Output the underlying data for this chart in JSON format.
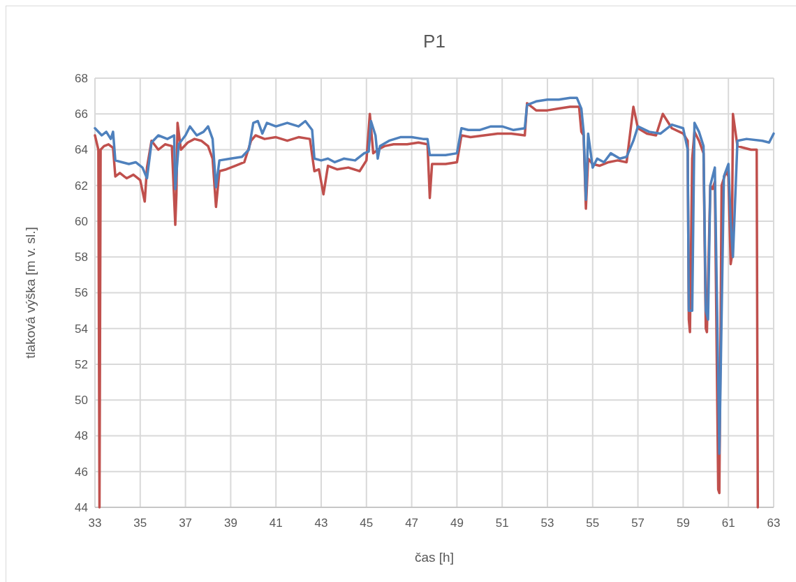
{
  "chart_data": {
    "type": "line",
    "title": "P1",
    "xlabel": "čas [h]",
    "ylabel": "tlaková výška [m v. sl.]",
    "xlim": [
      33,
      63
    ],
    "ylim": [
      44,
      68
    ],
    "xticks": [
      33,
      35,
      37,
      39,
      41,
      43,
      45,
      47,
      49,
      51,
      53,
      55,
      57,
      59,
      61,
      63
    ],
    "yticks": [
      44,
      46,
      48,
      50,
      52,
      54,
      56,
      58,
      60,
      62,
      64,
      66,
      68
    ],
    "grid": true,
    "marker": "none",
    "line_style": "solid",
    "series": [
      {
        "color": "#c0504d",
        "x": [
          33.0,
          33.15,
          33.2,
          33.25,
          33.4,
          33.6,
          33.8,
          33.9,
          34.1,
          34.4,
          34.7,
          35.0,
          35.2,
          35.3,
          35.5,
          35.8,
          36.1,
          36.4,
          36.55,
          36.6,
          36.65,
          36.8,
          37.1,
          37.4,
          37.7,
          38.0,
          38.2,
          38.35,
          38.5,
          38.8,
          39.2,
          39.6,
          39.9,
          40.1,
          40.5,
          41.0,
          41.5,
          42.0,
          42.5,
          42.7,
          42.9,
          43.1,
          43.3,
          43.7,
          44.2,
          44.7,
          45.0,
          45.15,
          45.3,
          45.5,
          45.8,
          46.2,
          46.8,
          47.3,
          47.7,
          47.8,
          47.9,
          48.5,
          49.0,
          49.2,
          49.6,
          50.2,
          50.8,
          51.4,
          52.0,
          52.1,
          52.5,
          53.0,
          53.5,
          54.0,
          54.4,
          54.5,
          54.6,
          54.7,
          54.8,
          55.0,
          55.3,
          55.7,
          56.1,
          56.5,
          56.8,
          57.0,
          57.4,
          57.8,
          58.1,
          58.5,
          59.0,
          59.2,
          59.25,
          59.3,
          59.4,
          59.5,
          59.7,
          59.9,
          60.0,
          60.05,
          60.2,
          60.3,
          60.4,
          60.55,
          60.6,
          60.7,
          60.9,
          61.0,
          61.1,
          61.15,
          61.2,
          61.4,
          61.7,
          62.0,
          62.25,
          62.3
        ],
        "values": [
          64.8,
          64.0,
          44.0,
          64.0,
          64.2,
          64.3,
          64.1,
          62.5,
          62.7,
          62.4,
          62.6,
          62.3,
          61.1,
          63.0,
          64.5,
          64.0,
          64.3,
          64.2,
          59.8,
          61.5,
          65.5,
          64.0,
          64.4,
          64.6,
          64.5,
          64.2,
          63.5,
          60.8,
          62.8,
          62.9,
          63.1,
          63.3,
          64.5,
          64.8,
          64.6,
          64.7,
          64.5,
          64.7,
          64.6,
          62.8,
          62.9,
          61.5,
          63.1,
          62.9,
          63.0,
          62.8,
          63.4,
          66.0,
          63.8,
          64.0,
          64.2,
          64.3,
          64.3,
          64.4,
          64.3,
          61.3,
          63.2,
          63.2,
          63.3,
          64.8,
          64.7,
          64.8,
          64.9,
          64.9,
          64.8,
          66.6,
          66.2,
          66.2,
          66.3,
          66.4,
          66.4,
          65.0,
          64.8,
          60.7,
          63.5,
          63.2,
          63.1,
          63.3,
          63.4,
          63.3,
          66.4,
          65.2,
          64.9,
          64.8,
          66.0,
          65.2,
          64.9,
          64.5,
          54.5,
          53.8,
          63.5,
          65.0,
          64.5,
          63.8,
          54.0,
          53.8,
          62.0,
          61.8,
          62.2,
          45.0,
          44.8,
          62.0,
          62.8,
          62.5,
          57.6,
          58.0,
          66.0,
          64.2,
          64.1,
          64.0,
          64.0,
          44.0
        ]
      },
      {
        "color": "#4f81bd",
        "x": [
          33.0,
          33.3,
          33.5,
          33.7,
          33.8,
          33.9,
          34.2,
          34.5,
          34.8,
          35.1,
          35.3,
          35.5,
          35.8,
          36.2,
          36.5,
          36.55,
          36.7,
          37.0,
          37.2,
          37.5,
          37.8,
          38.0,
          38.2,
          38.35,
          38.5,
          39.0,
          39.5,
          39.8,
          40.0,
          40.2,
          40.4,
          40.6,
          41.0,
          41.5,
          42.0,
          42.3,
          42.6,
          42.7,
          43.0,
          43.3,
          43.6,
          44.0,
          44.5,
          44.9,
          45.1,
          45.2,
          45.4,
          45.5,
          45.6,
          46.0,
          46.5,
          47.0,
          47.5,
          47.7,
          47.8,
          48.5,
          49.0,
          49.2,
          49.5,
          50.0,
          50.5,
          51.0,
          51.5,
          52.0,
          52.1,
          52.5,
          53.0,
          53.5,
          54.0,
          54.3,
          54.5,
          54.6,
          54.7,
          54.8,
          55.0,
          55.2,
          55.5,
          55.8,
          56.2,
          56.5,
          56.8,
          57.0,
          57.5,
          58.0,
          58.5,
          59.0,
          59.2,
          59.25,
          59.4,
          59.5,
          59.7,
          59.9,
          60.0,
          60.1,
          60.2,
          60.4,
          60.6,
          60.8,
          61.0,
          61.1,
          61.2,
          61.4,
          61.8,
          62.5,
          62.8,
          63.0
        ],
        "values": [
          65.2,
          64.8,
          65.0,
          64.6,
          65.0,
          63.4,
          63.3,
          63.2,
          63.3,
          63.0,
          62.4,
          64.4,
          64.8,
          64.6,
          64.8,
          61.8,
          64.3,
          64.8,
          65.3,
          64.8,
          65.0,
          65.3,
          64.6,
          61.9,
          63.4,
          63.5,
          63.6,
          64.0,
          65.5,
          65.6,
          64.9,
          65.5,
          65.3,
          65.5,
          65.3,
          65.6,
          65.1,
          63.5,
          63.4,
          63.5,
          63.3,
          63.5,
          63.4,
          63.8,
          63.9,
          65.6,
          64.8,
          63.5,
          64.2,
          64.5,
          64.7,
          64.7,
          64.6,
          64.6,
          63.7,
          63.7,
          63.8,
          65.2,
          65.1,
          65.1,
          65.3,
          65.3,
          65.1,
          65.2,
          66.5,
          66.7,
          66.8,
          66.8,
          66.9,
          66.9,
          66.3,
          65.0,
          61.2,
          64.9,
          63.0,
          63.5,
          63.3,
          63.8,
          63.5,
          63.6,
          64.5,
          65.3,
          65.0,
          64.9,
          65.4,
          65.2,
          64.0,
          55.0,
          55.0,
          65.5,
          65.0,
          64.2,
          55.0,
          54.5,
          62.0,
          63.0,
          47.0,
          62.5,
          63.2,
          60.0,
          58.0,
          64.5,
          64.6,
          64.5,
          64.4,
          64.9
        ]
      }
    ]
  }
}
